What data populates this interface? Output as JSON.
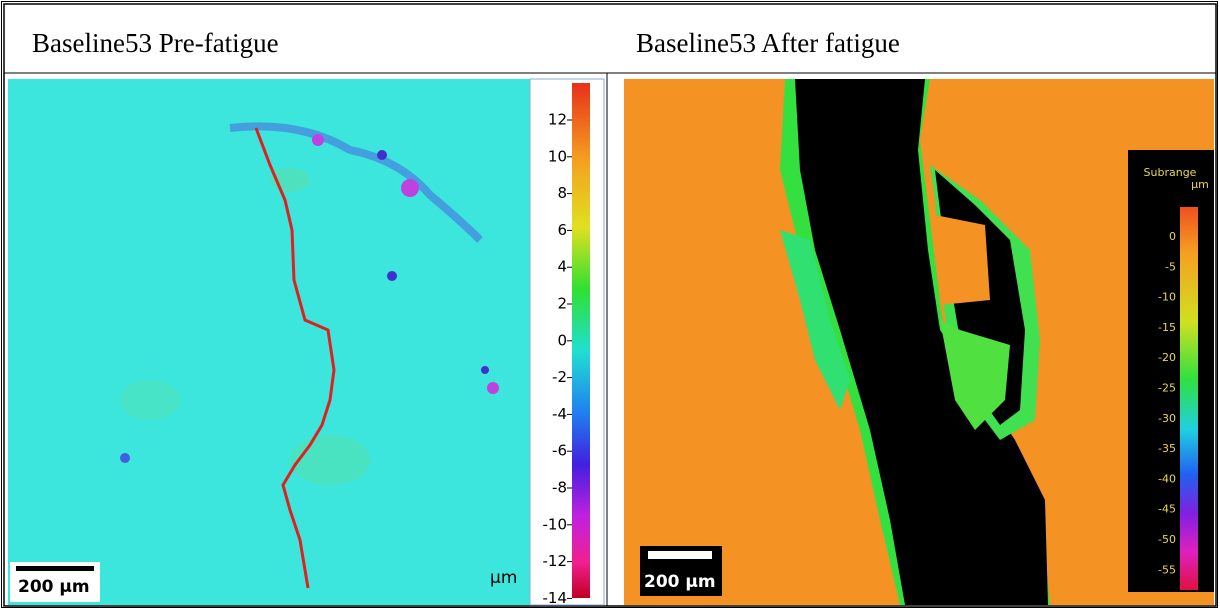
{
  "panels": [
    {
      "title": "Baseline53 Pre-fatigue",
      "scale_bar": "200 µm",
      "colorbar": {
        "ticks": [
          "12",
          "10",
          "8",
          "6",
          "4",
          "2",
          "0",
          "-2",
          "-4",
          "-6",
          "-8",
          "-10",
          "-12",
          "-14"
        ],
        "unit": "µm"
      }
    },
    {
      "title": "Baseline53 After fatigue",
      "scale_bar": "200 µm",
      "colorbar": {
        "heading": "Subrange",
        "unit": "µm",
        "ticks": [
          "0",
          "-5",
          "-10",
          "-15",
          "-20",
          "-25",
          "-30",
          "-35",
          "-40",
          "-45",
          "-50",
          "-55"
        ]
      }
    }
  ]
}
